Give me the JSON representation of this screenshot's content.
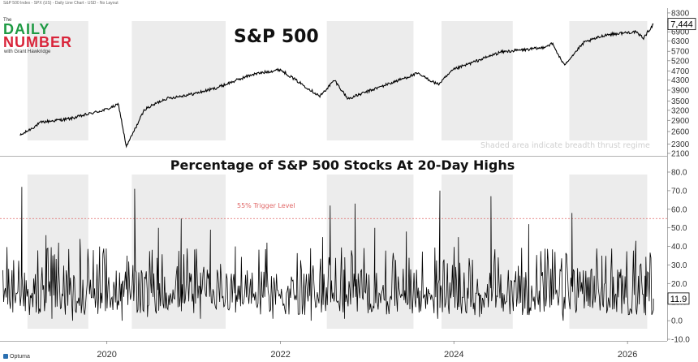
{
  "header": {
    "source_text": "S&P 500 Index - SPX (US) - Daily Line Chart - USD - No Layout",
    "logo_the": "The",
    "logo_daily": "DAILY",
    "logo_number": "NUMBER",
    "logo_with": "with Grant Hawkridge",
    "footer_brand": "Optuma"
  },
  "colors": {
    "line": "#000000",
    "shade": "#ececec",
    "trigger": "#e06666",
    "logo_green": "#1f9a44",
    "logo_red": "#d9243a"
  },
  "chart_data": [
    {
      "type": "line",
      "title": "S&P 500",
      "note": "Shaded area indicate breadth thrust regime",
      "x_ticks": [
        "2020",
        "2022",
        "2024",
        "2026"
      ],
      "y_ticks": [
        "8300",
        "7600",
        "6900",
        "6300",
        "5700",
        "5200",
        "4700",
        "4300",
        "3900",
        "3500",
        "3200",
        "2900",
        "2600",
        "2300",
        "2100"
      ],
      "last_value": "7,444",
      "x": [
        "2019-01-01",
        "2019-04-01",
        "2019-08-01",
        "2019-12-31",
        "2020-02-19",
        "2020-03-23",
        "2020-06-08",
        "2020-09-02",
        "2020-12-31",
        "2021-04-01",
        "2021-09-02",
        "2021-12-31",
        "2022-06-16",
        "2022-08-16",
        "2022-10-12",
        "2022-12-31",
        "2023-07-31",
        "2023-10-27",
        "2023-12-31",
        "2024-07-16",
        "2024-12-31",
        "2025-02-19",
        "2025-04-08",
        "2025-07-01",
        "2025-10-01",
        "2026-02-01",
        "2026-03-10",
        "2026-04-20"
      ],
      "values": [
        2500,
        2850,
        2950,
        3230,
        3390,
        2240,
        3230,
        3580,
        3760,
        3970,
        4540,
        4770,
        3670,
        4300,
        3580,
        3840,
        4590,
        4120,
        4770,
        5660,
        5880,
        6140,
        4980,
        6200,
        6700,
        6900,
        6500,
        7444
      ],
      "regimes": [
        [
          "2019-02-01",
          "2019-10-15"
        ],
        [
          "2020-04-15",
          "2021-05-15"
        ],
        [
          "2022-07-15",
          "2023-07-15"
        ],
        [
          "2023-11-10",
          "2024-09-05"
        ],
        [
          "2025-05-01",
          "2026-03-25"
        ]
      ]
    },
    {
      "type": "line",
      "title": "Percentage of S&P 500 Stocks At 20-Day Highs",
      "trigger_label": "55% Trigger Level",
      "trigger_value": 55,
      "y_ticks": [
        "80.0",
        "70.0",
        "60.0",
        "50.0",
        "40.0",
        "30.0",
        "20.0",
        "10.0",
        "0.0",
        "-10.0"
      ],
      "ylim": [
        -10,
        80
      ],
      "last_value": "11.9",
      "peaks": [
        {
          "x": "2019-01-08",
          "y": 72
        },
        {
          "x": "2019-04-20",
          "y": 46
        },
        {
          "x": "2019-06-12",
          "y": 42
        },
        {
          "x": "2019-09-10",
          "y": 44
        },
        {
          "x": "2019-11-05",
          "y": 38
        },
        {
          "x": "2020-03-26",
          "y": 35
        },
        {
          "x": "2020-04-27",
          "y": 71
        },
        {
          "x": "2020-08-05",
          "y": 50
        },
        {
          "x": "2020-11-09",
          "y": 55
        },
        {
          "x": "2021-03-12",
          "y": 49
        },
        {
          "x": "2021-06-25",
          "y": 40
        },
        {
          "x": "2021-11-05",
          "y": 42
        },
        {
          "x": "2022-06-27",
          "y": 45
        },
        {
          "x": "2022-07-29",
          "y": 62
        },
        {
          "x": "2022-11-11",
          "y": 63
        },
        {
          "x": "2023-02-02",
          "y": 50
        },
        {
          "x": "2023-06-15",
          "y": 48
        },
        {
          "x": "2023-11-03",
          "y": 70
        },
        {
          "x": "2024-01-20",
          "y": 45
        },
        {
          "x": "2024-06-05",
          "y": 67
        },
        {
          "x": "2024-11-11",
          "y": 52
        },
        {
          "x": "2025-05-12",
          "y": 58
        },
        {
          "x": "2025-09-15",
          "y": 35
        },
        {
          "x": "2026-02-05",
          "y": 43
        }
      ],
      "troughs": [
        {
          "x": "2019-05-15",
          "y": 1
        },
        {
          "x": "2019-08-10",
          "y": 0
        },
        {
          "x": "2020-03-05",
          "y": 0
        },
        {
          "x": "2020-06-20",
          "y": 2
        },
        {
          "x": "2021-01-29",
          "y": 1
        },
        {
          "x": "2021-11-30",
          "y": 1
        },
        {
          "x": "2022-05-10",
          "y": 0
        },
        {
          "x": "2022-09-28",
          "y": 1
        },
        {
          "x": "2023-10-25",
          "y": 1
        },
        {
          "x": "2024-04-18",
          "y": 2
        },
        {
          "x": "2025-04-05",
          "y": 0
        },
        {
          "x": "2026-03-18",
          "y": 3
        }
      ],
      "last_x": "2026-04-20",
      "last_y": 11.9
    }
  ]
}
